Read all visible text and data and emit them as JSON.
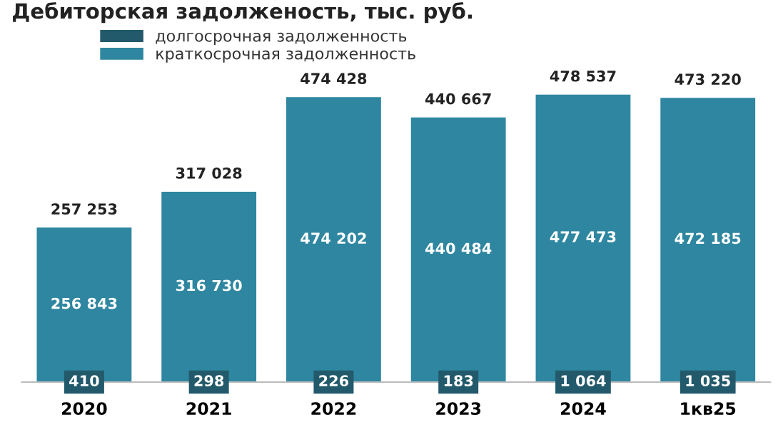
{
  "chart_data": {
    "type": "bar",
    "title": "Дебиторская задолженость, тыс. руб.",
    "categories": [
      "2020",
      "2021",
      "2022",
      "2023",
      "2024",
      "1кв25"
    ],
    "stacked": true,
    "ylim": [
      0,
      560000
    ],
    "legend": "top left",
    "grid": false,
    "series": [
      {
        "name": "долгосрочная задолженность",
        "color": "#235a6b",
        "values": [
          410,
          298,
          226,
          183,
          1064,
          1035
        ],
        "value_labels": [
          "410",
          "298",
          "226",
          "183",
          "1 064",
          "1 035"
        ]
      },
      {
        "name": "краткосрочная задолженность",
        "color": "#2e86a0",
        "values": [
          256843,
          316730,
          474202,
          440484,
          477473,
          472185
        ],
        "value_labels": [
          "256 843",
          "316 730",
          "474 202",
          "440 484",
          "477 473",
          "472 185"
        ]
      }
    ],
    "totals": [
      "257 253",
      "317 028",
      "474 428",
      "440 667",
      "478 537",
      "473 220"
    ]
  }
}
